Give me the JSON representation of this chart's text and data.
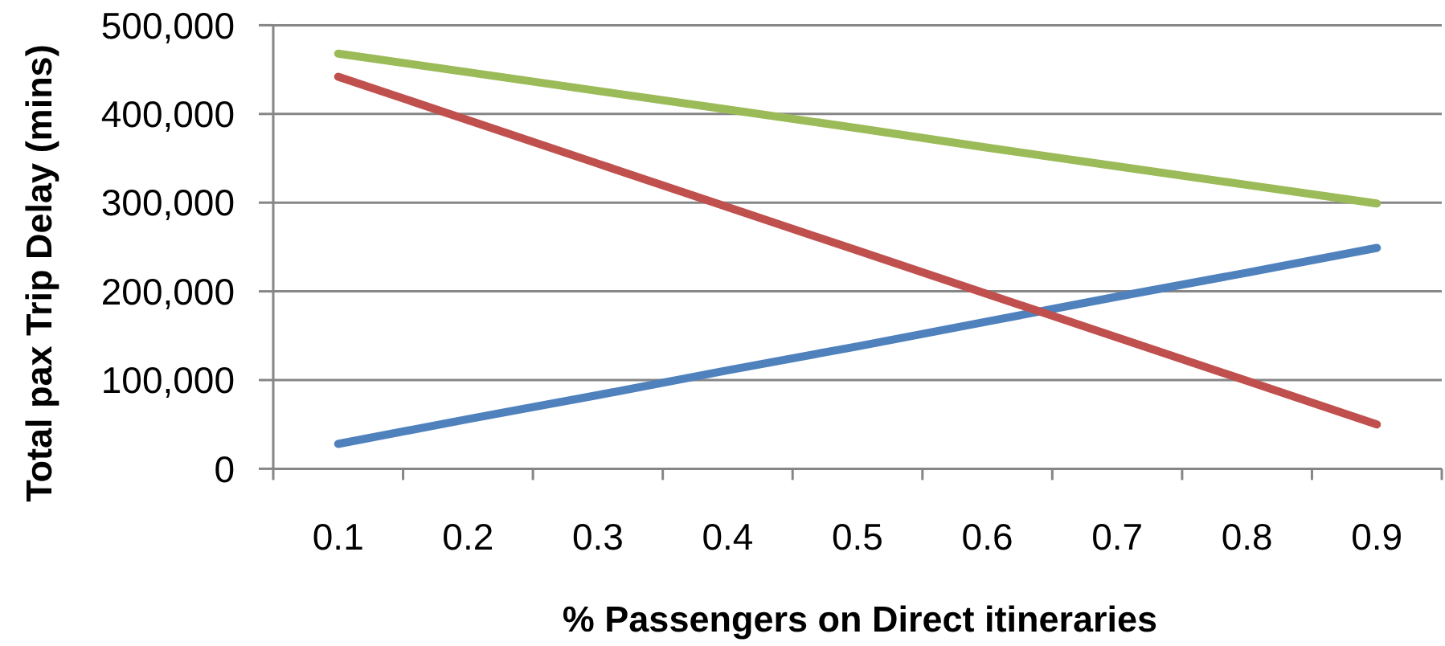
{
  "chart_data": {
    "type": "line",
    "xlabel": "% Passengers on Direct itineraries",
    "ylabel": "Total pax Trip Delay (mins)",
    "categories": [
      "0.1",
      "0.2",
      "0.3",
      "0.4",
      "0.5",
      "0.6",
      "0.7",
      "0.8",
      "0.9"
    ],
    "series": [
      {
        "color": "#4f81bd",
        "values": [
          28000,
          56000,
          83000,
          111000,
          138000,
          166000,
          194000,
          221000,
          249000
        ]
      },
      {
        "color": "#c0504d",
        "values": [
          442000,
          393000,
          344000,
          295000,
          246000,
          197000,
          148000,
          99000,
          50000
        ]
      },
      {
        "color": "#9bbb59",
        "values": [
          468000,
          447000,
          426000,
          405000,
          384000,
          362000,
          341000,
          320000,
          299000
        ]
      }
    ],
    "ylim": [
      0,
      500000
    ],
    "yticks": [
      0,
      {
        "value": 100000,
        "label": "100,000"
      },
      {
        "value": 200000,
        "label": "200,000"
      },
      {
        "value": 300000,
        "label": "300,000"
      },
      {
        "value": 400000,
        "label": "400,000"
      },
      {
        "value": 500000,
        "label": "500,000"
      }
    ],
    "grid": "y"
  }
}
